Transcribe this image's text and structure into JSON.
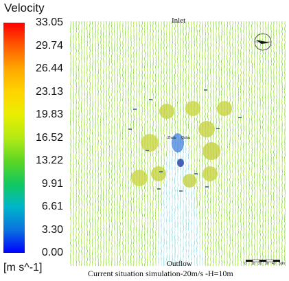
{
  "legend": {
    "title": "Velocity",
    "ticks": [
      "33.05",
      "29.74",
      "26.44",
      "23.13",
      "19.83",
      "16.52",
      "13.22",
      "9.91",
      "6.61",
      "3.30",
      "0.00"
    ],
    "unit": "[m s^-1]",
    "colors": [
      "#ff0000",
      "#ffa800",
      "#ffd400",
      "#e8ef00",
      "#b4ea14",
      "#5ed623",
      "#12c95f",
      "#00b6c9",
      "#0a73e0",
      "#0000ff"
    ]
  },
  "plot": {
    "top_label": "Inlet",
    "bottom_label": "Outflow",
    "caption": "Current situation simulation-20m/s -H=10m",
    "building_label_1": "Zhalu",
    "building_label_2": "Qulou",
    "compass_icon": "north-arrow-icon",
    "scale_ticks": [
      "0",
      "10",
      "20",
      "30",
      "40",
      "50"
    ],
    "scale_unit": "m",
    "background_color": "#7ed321",
    "wake_color": "#bfe9ef"
  }
}
